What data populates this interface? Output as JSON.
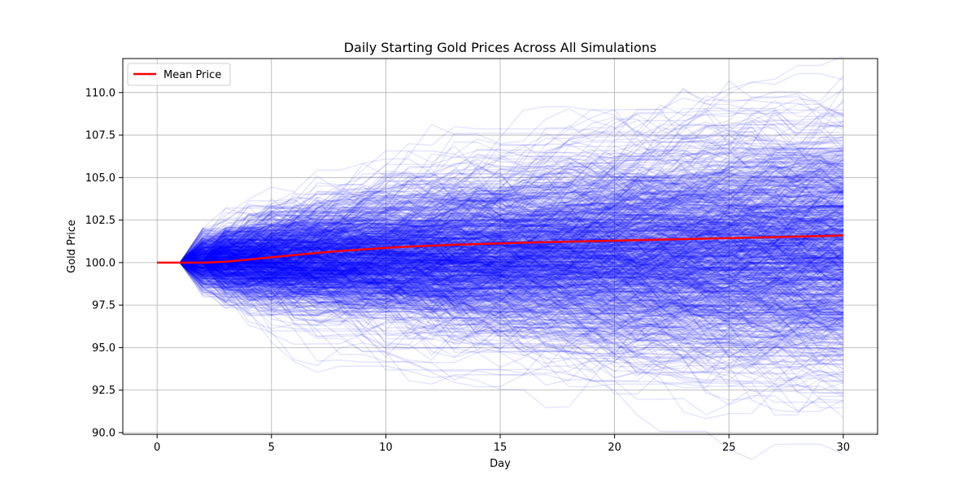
{
  "chart_data": {
    "type": "line",
    "title": "Daily Starting Gold Prices Across All Simulations",
    "xlabel": "Day",
    "ylabel": "Gold Price",
    "xlim": [
      -1.5,
      31.5
    ],
    "ylim": [
      89.9,
      112.0
    ],
    "xticks": [
      0,
      5,
      10,
      15,
      20,
      25,
      30
    ],
    "yticks": [
      90.0,
      92.5,
      95.0,
      97.5,
      100.0,
      102.5,
      105.0,
      107.5,
      110.0
    ],
    "grid": true,
    "legend": {
      "position": "top-left",
      "entries": [
        "Mean Price"
      ]
    },
    "colors": {
      "simulations": "#0000ff",
      "mean": "#ff0000"
    },
    "simulations": {
      "count": 1000,
      "start_price": 100.0,
      "daily_step_range": [
        -2.0,
        2.0
      ],
      "days": 30
    },
    "series": [
      {
        "name": "Mean Price",
        "x": [
          0,
          1,
          2,
          3,
          4,
          5,
          6,
          7,
          8,
          9,
          10,
          11,
          12,
          13,
          14,
          15,
          16,
          17,
          18,
          19,
          20,
          21,
          22,
          23,
          24,
          25,
          26,
          27,
          28,
          29,
          30
        ],
        "values": [
          100.0,
          100.0,
          100.0,
          100.05,
          100.18,
          100.32,
          100.45,
          100.57,
          100.68,
          100.78,
          100.87,
          100.94,
          101.0,
          101.05,
          101.09,
          101.13,
          101.17,
          101.2,
          101.23,
          101.26,
          101.29,
          101.32,
          101.35,
          101.38,
          101.41,
          101.44,
          101.47,
          101.5,
          101.53,
          101.56,
          101.6
        ]
      }
    ]
  }
}
